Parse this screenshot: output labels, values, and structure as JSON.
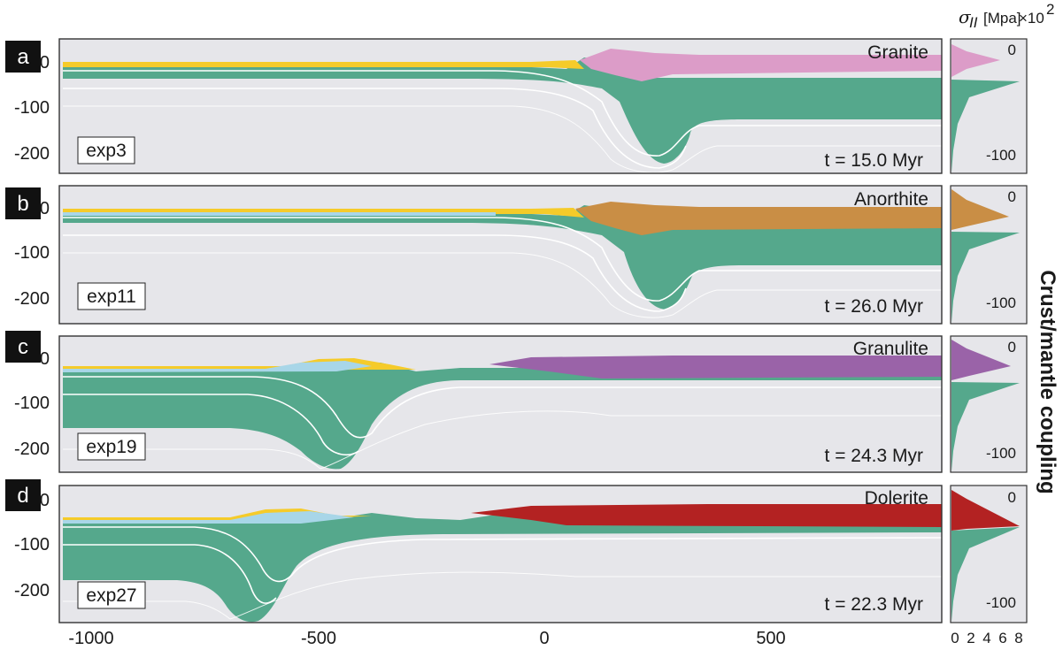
{
  "colors": {
    "background": "#e6e6ea",
    "mantle": "#55a88c",
    "surface": "#f5cb2a",
    "water": "#a8d6e8",
    "layer_line": "#ffffff"
  },
  "header": {
    "symbol": "σ",
    "subscript": "II",
    "unit": "[Mpa]",
    "scale": "×10",
    "power": "2"
  },
  "side_title": "Crust/mantle coupling",
  "depth_ticks": [
    "0",
    "-100",
    "-200"
  ],
  "x_axis": {
    "ticks": [
      "-1000",
      "-500",
      "0",
      "500"
    ]
  },
  "profile_axis": {
    "ticks": [
      "0",
      "2",
      "4",
      "6",
      "8"
    ],
    "depth_ticks": [
      "0",
      "-100"
    ]
  },
  "panels": [
    {
      "letter": "a",
      "rock": "Granite",
      "experiment": "exp3",
      "time": "t = 15.0 Myr",
      "crust_color": "#dc9cc8",
      "profile_peak": 3
    },
    {
      "letter": "b",
      "rock": "Anorthite",
      "experiment": "exp11",
      "time": "t = 26.0 Myr",
      "crust_color": "#c98e45",
      "profile_peak": 6
    },
    {
      "letter": "c",
      "rock": "Granulite",
      "experiment": "exp19",
      "time": "t = 24.3 Myr",
      "crust_color": "#9a63a8",
      "profile_peak": 6.5
    },
    {
      "letter": "d",
      "rock": "Dolerite",
      "experiment": "exp27",
      "time": "t = 22.3 Myr",
      "crust_color": "#b32222",
      "profile_peak": 8
    }
  ]
}
